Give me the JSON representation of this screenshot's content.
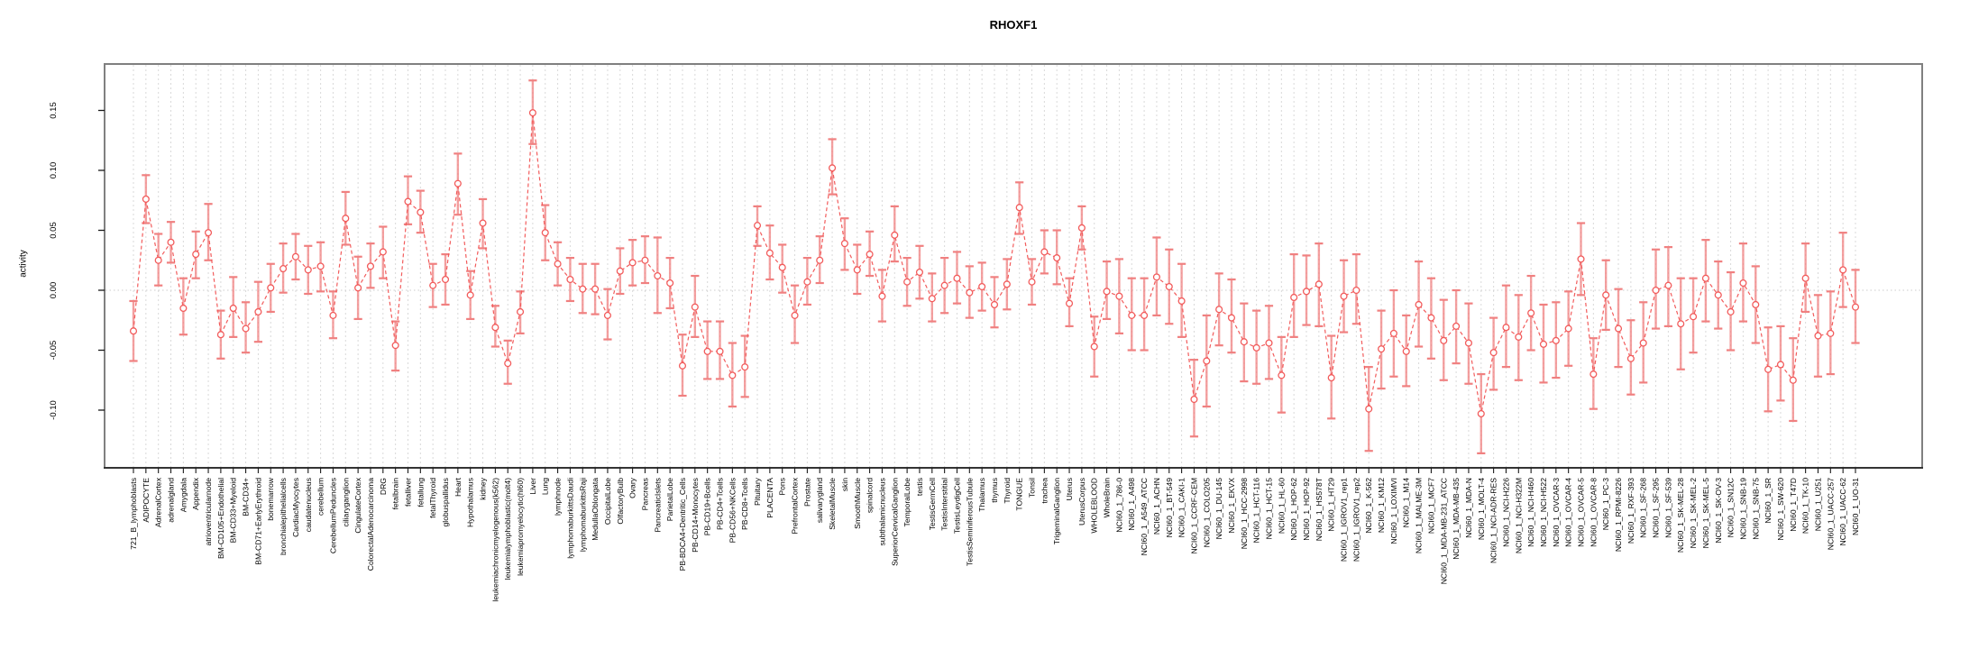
{
  "chart_data": {
    "type": "scatter",
    "title": "RHOXF1",
    "ylabel": "activity",
    "xlabel": "",
    "ylim": [
      -0.148,
      0.189
    ],
    "y_ticks": [
      "-0.10",
      "-0.05",
      "0.00",
      "0.05",
      "0.10",
      "0.15"
    ],
    "y_tick_values": [
      -0.1,
      -0.05,
      0.0,
      0.05,
      0.1,
      0.15
    ],
    "zero_line": 0,
    "grid": "vertical-dashed",
    "legend_position": "none",
    "series_style": {
      "marker": "open-circle",
      "line": "dashed",
      "error_bars": true
    },
    "colors": {
      "point": "#f25c5c",
      "line": "#f25c5c",
      "error_bar": "#f08080",
      "grid": "#d9d9d9",
      "frame": "#808080",
      "axis": "#1a1a1a",
      "zero_line": "#cccccc",
      "text": "#000000",
      "background": "#ffffff"
    },
    "categories": [
      "721_B_lymphoblasts",
      "ADIPOCYTE",
      "AdrenalCortex",
      "adrenalgland",
      "Amygdala",
      "Appendix",
      "atrioventricularnode",
      "BM-CD105+Endothelial",
      "BM-CD33+Myeloid",
      "BM-CD34+",
      "BM-CD71+EarlyErythroid",
      "bonemarrow",
      "bronchialepithelialcells",
      "CardiacMyocytes",
      "caudatenucleus",
      "cerebellum",
      "CerebellumPeduncles",
      "ciliaryganglion",
      "CingulateCortex",
      "ColorectalAdenocarcinoma",
      "DRG",
      "fetalbrain",
      "fetalliver",
      "fetallung",
      "fetalThyroid",
      "globuspallidus",
      "Heart",
      "Hypothalamus",
      "kidney",
      "leukemiachronicmyelogenous(k562)",
      "leukemialymphoblastic(molt4)",
      "leukemiapromyelocytic(hl60)",
      "Liver",
      "Lung",
      "lymphnode",
      "lymphomaburkittsDaudi",
      "lymphomaburkittsRaji",
      "MedullaOblongata",
      "OccipitalLobe",
      "OlfactoryBulb",
      "Ovary",
      "Pancreas",
      "PancreaticIslets",
      "ParietalLobe",
      "PB-BDCA4+Dentritic_Cells",
      "PB-CD14+Monocytes",
      "PB-CD19+Bcells",
      "PB-CD4+Tcells",
      "PB-CD56+NKCells",
      "PB-CD8+Tcells",
      "Pituitary",
      "PLACENTA",
      "Pons",
      "PrefrontalCortex",
      "Prostate",
      "salivarygland",
      "SkeletalMuscle",
      "skin",
      "SmoothMuscle",
      "spinalcord",
      "subthalamicnucleus",
      "SuperiorCervicalGanglion",
      "TemporalLobe",
      "testis",
      "TestisGermCell",
      "TestisInterstitial",
      "TestisLeydigCell",
      "TestisSeminiferousTubule",
      "Thalamus",
      "thymus",
      "Thyroid",
      "TONGUE",
      "Tonsil",
      "trachea",
      "TrigeminalGanglion",
      "Uterus",
      "UterusCorpus",
      "WHOLEBLOOD",
      "WholeBrain",
      "NCI60_1_786-0",
      "NCI60_1_A498",
      "NCI60_1_A549_ATCC",
      "NCI60_1_ACHN",
      "NCI60_1_BT-549",
      "NCI60_1_CAKI-1",
      "NCI60_1_CCRF-CEM",
      "NCI60_1_COLO205",
      "NCI60_1_DU-145",
      "NCI60_1_EKVX",
      "NCI60_1_HCC-2998",
      "NCI60_1_HCT-116",
      "NCI60_1_HCT-15",
      "NCI60_1_HL-60",
      "NCI60_1_HOP-62",
      "NCI60_1_HOP-92",
      "NCI60_1_HS578T",
      "NCI60_1_HT29",
      "NCI60_1_IGROV1_rep1",
      "NCI60_1_IGROV1_rep2",
      "NCI60_1_K-562",
      "NCI60_1_KM12",
      "NCI60_1_LOXIMVI",
      "NCI60_1_M14",
      "NCI60_1_MALME-3M",
      "NCI60_1_MCF7",
      "NCI60_1_MDA-MB-231_ATCC",
      "NCI60_1_MDA-MB-435",
      "NCI60_1_MDA-N",
      "NCI60_1_MOLT-4",
      "NCI60_1_NCI-ADR-RES",
      "NCI60_1_NCI-H226",
      "NCI60_1_NCI-H322M",
      "NCI60_1_NCI-H460",
      "NCI60_1_NCI-H522",
      "NCI60_1_OVCAR-3",
      "NCI60_1_OVCAR-4",
      "NCI60_1_OVCAR-5",
      "NCI60_1_OVCAR-8",
      "NCI60_1_PC-3",
      "NCI60_1_RPMI-8226",
      "NCI60_1_RXF-393",
      "NCI60_1_SF-268",
      "NCI60_1_SF-295",
      "NCI60_1_SF-539",
      "NCI60_1_SK-MEL-28",
      "NCI60_1_SK-MEL-2",
      "NCI60_1_SK-MEL-5",
      "NCI60_1_SK-OV-3",
      "NCI60_1_SN12C",
      "NCI60_1_SNB-19",
      "NCI60_1_SNB-75",
      "NCI60_1_SR",
      "NCI60_1_SW-620",
      "NCI60_1_T47D",
      "NCI60_1_TK-10",
      "NCI60_1_U251",
      "NCI60_1_UACC-257",
      "NCI60_1_UACC-62",
      "NCI60_1_UO-31"
    ],
    "values": [
      -0.034,
      0.076,
      0.025,
      0.04,
      -0.015,
      0.03,
      0.048,
      -0.037,
      -0.015,
      -0.032,
      -0.018,
      0.002,
      0.018,
      0.028,
      0.017,
      0.02,
      -0.021,
      0.06,
      0.002,
      0.02,
      0.032,
      -0.046,
      0.074,
      0.065,
      0.004,
      0.009,
      0.089,
      -0.004,
      0.056,
      -0.031,
      -0.061,
      -0.018,
      0.148,
      0.048,
      0.022,
      0.009,
      0.001,
      0.001,
      -0.021,
      0.016,
      0.023,
      0.025,
      0.012,
      0.006,
      -0.063,
      -0.014,
      -0.051,
      -0.051,
      -0.071,
      -0.064,
      0.054,
      0.031,
      0.019,
      -0.021,
      0.007,
      0.025,
      0.102,
      0.039,
      0.017,
      0.03,
      -0.005,
      0.046,
      0.007,
      0.015,
      -0.007,
      0.004,
      0.01,
      -0.002,
      0.003,
      -0.012,
      0.005,
      0.069,
      0.007,
      0.032,
      0.027,
      -0.011,
      0.052,
      -0.047,
      -0.001,
      -0.005,
      -0.021,
      -0.021,
      0.011,
      0.003,
      -0.009,
      -0.091,
      -0.059,
      -0.016,
      -0.023,
      -0.043,
      -0.048,
      -0.044,
      -0.071,
      -0.006,
      -0.001,
      0.005,
      -0.073,
      -0.005,
      0.0,
      -0.099,
      -0.049,
      -0.036,
      -0.051,
      -0.012,
      -0.023,
      -0.042,
      -0.03,
      -0.044,
      -0.103,
      -0.052,
      -0.031,
      -0.039,
      -0.019,
      -0.045,
      -0.042,
      -0.032,
      0.026,
      -0.07,
      -0.004,
      -0.032,
      -0.057,
      -0.044,
      0.0,
      0.004,
      -0.028,
      -0.022,
      0.01,
      -0.004,
      -0.018,
      0.006,
      -0.012,
      -0.066,
      -0.062,
      -0.075,
      0.01,
      -0.038,
      -0.036,
      0.017,
      -0.014
    ],
    "err_low": [
      -0.059,
      0.056,
      0.004,
      0.023,
      -0.037,
      0.01,
      0.025,
      -0.057,
      -0.039,
      -0.052,
      -0.043,
      -0.018,
      -0.002,
      0.009,
      -0.003,
      -0.001,
      -0.04,
      0.038,
      -0.024,
      0.002,
      0.01,
      -0.067,
      0.055,
      0.048,
      -0.014,
      -0.012,
      0.063,
      -0.024,
      0.035,
      -0.047,
      -0.078,
      -0.036,
      0.122,
      0.025,
      0.004,
      -0.009,
      -0.019,
      -0.02,
      -0.041,
      -0.003,
      0.004,
      0.006,
      -0.019,
      -0.015,
      -0.088,
      -0.039,
      -0.074,
      -0.074,
      -0.097,
      -0.089,
      0.037,
      0.009,
      -0.002,
      -0.044,
      -0.012,
      0.006,
      0.08,
      0.017,
      -0.003,
      0.012,
      -0.026,
      0.024,
      -0.013,
      -0.007,
      -0.026,
      -0.019,
      -0.011,
      -0.023,
      -0.017,
      -0.031,
      -0.016,
      0.047,
      -0.012,
      0.014,
      0.005,
      -0.03,
      0.034,
      -0.072,
      -0.024,
      -0.036,
      -0.05,
      -0.05,
      -0.021,
      -0.028,
      -0.039,
      -0.122,
      -0.097,
      -0.046,
      -0.052,
      -0.076,
      -0.078,
      -0.074,
      -0.102,
      -0.039,
      -0.029,
      -0.03,
      -0.107,
      -0.035,
      -0.028,
      -0.134,
      -0.082,
      -0.072,
      -0.08,
      -0.047,
      -0.057,
      -0.075,
      -0.061,
      -0.078,
      -0.136,
      -0.083,
      -0.064,
      -0.075,
      -0.05,
      -0.077,
      -0.073,
      -0.063,
      -0.004,
      -0.099,
      -0.033,
      -0.064,
      -0.087,
      -0.077,
      -0.032,
      -0.03,
      -0.066,
      -0.052,
      -0.026,
      -0.032,
      -0.05,
      -0.026,
      -0.044,
      -0.101,
      -0.092,
      -0.109,
      -0.018,
      -0.072,
      -0.07,
      -0.014,
      -0.044
    ],
    "err_high": [
      -0.009,
      0.096,
      0.047,
      0.057,
      0.01,
      0.049,
      0.072,
      -0.017,
      0.011,
      -0.01,
      0.007,
      0.022,
      0.039,
      0.047,
      0.037,
      0.04,
      -0.001,
      0.082,
      0.028,
      0.039,
      0.053,
      -0.026,
      0.095,
      0.083,
      0.022,
      0.03,
      0.114,
      0.016,
      0.076,
      -0.013,
      -0.042,
      -0.001,
      0.175,
      0.071,
      0.04,
      0.027,
      0.022,
      0.022,
      0.001,
      0.035,
      0.042,
      0.045,
      0.044,
      0.027,
      -0.037,
      0.012,
      -0.026,
      -0.026,
      -0.044,
      -0.038,
      0.07,
      0.054,
      0.038,
      0.004,
      0.027,
      0.045,
      0.126,
      0.06,
      0.038,
      0.049,
      0.017,
      0.07,
      0.027,
      0.037,
      0.014,
      0.027,
      0.032,
      0.02,
      0.023,
      0.011,
      0.026,
      0.09,
      0.026,
      0.05,
      0.05,
      0.01,
      0.07,
      -0.022,
      0.024,
      0.026,
      0.01,
      0.01,
      0.044,
      0.034,
      0.022,
      -0.058,
      -0.021,
      0.014,
      0.009,
      -0.011,
      -0.017,
      -0.013,
      -0.039,
      0.03,
      0.029,
      0.039,
      -0.038,
      0.025,
      0.03,
      -0.064,
      -0.017,
      0.0,
      -0.021,
      0.024,
      0.01,
      -0.008,
      0.0,
      -0.011,
      -0.07,
      -0.023,
      0.004,
      -0.004,
      0.012,
      -0.012,
      -0.01,
      -0.001,
      0.056,
      -0.04,
      0.025,
      0.001,
      -0.025,
      -0.01,
      0.034,
      0.036,
      0.01,
      0.01,
      0.042,
      0.024,
      0.015,
      0.039,
      0.02,
      -0.031,
      -0.03,
      -0.04,
      0.039,
      -0.004,
      -0.001,
      0.048,
      0.017
    ]
  }
}
